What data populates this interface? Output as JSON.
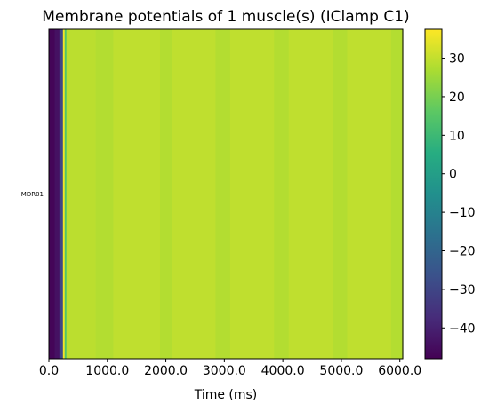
{
  "chart_data": {
    "type": "heatmap",
    "title": "Membrane potentials of 1 muscle(s) (IClamp C1)",
    "xlabel": "Time (ms)",
    "ylabel": "",
    "xlim": [
      0,
      6050
    ],
    "xticks": [
      0,
      1000,
      2000,
      3000,
      4000,
      5000,
      6000
    ],
    "xtick_labels": [
      "0.0",
      "1000.0",
      "2000.0",
      "3000.0",
      "4000.0",
      "5000.0",
      "6000.0"
    ],
    "rows": [
      "MDR01"
    ],
    "colorbar": {
      "colormap": "viridis",
      "range": [
        -48,
        37.5
      ],
      "ticks": [
        -40,
        -30,
        -20,
        -10,
        0,
        10,
        20,
        30
      ],
      "tick_labels": [
        "−40",
        "−30",
        "−20",
        "−10",
        "0",
        "10",
        "20",
        "30"
      ]
    },
    "segments": [
      {
        "t0": 0,
        "t1": 100,
        "v": -47
      },
      {
        "t0": 100,
        "t1": 180,
        "v": -44
      },
      {
        "t0": 180,
        "t1": 240,
        "v": -30
      },
      {
        "t0": 240,
        "t1": 270,
        "v": 36
      },
      {
        "t0": 270,
        "t1": 300,
        "v": 14
      },
      {
        "t0": 300,
        "t1": 800,
        "v": 29
      },
      {
        "t0": 800,
        "t1": 1100,
        "v": 28
      },
      {
        "t0": 1100,
        "t1": 1900,
        "v": 29.5
      },
      {
        "t0": 1900,
        "t1": 2100,
        "v": 28
      },
      {
        "t0": 2100,
        "t1": 2850,
        "v": 29.5
      },
      {
        "t0": 2850,
        "t1": 3100,
        "v": 28
      },
      {
        "t0": 3100,
        "t1": 3850,
        "v": 29.5
      },
      {
        "t0": 3850,
        "t1": 4100,
        "v": 28
      },
      {
        "t0": 4100,
        "t1": 4850,
        "v": 29.5
      },
      {
        "t0": 4850,
        "t1": 5100,
        "v": 28
      },
      {
        "t0": 5100,
        "t1": 5850,
        "v": 29.5
      },
      {
        "t0": 5850,
        "t1": 6050,
        "v": 28
      }
    ]
  }
}
